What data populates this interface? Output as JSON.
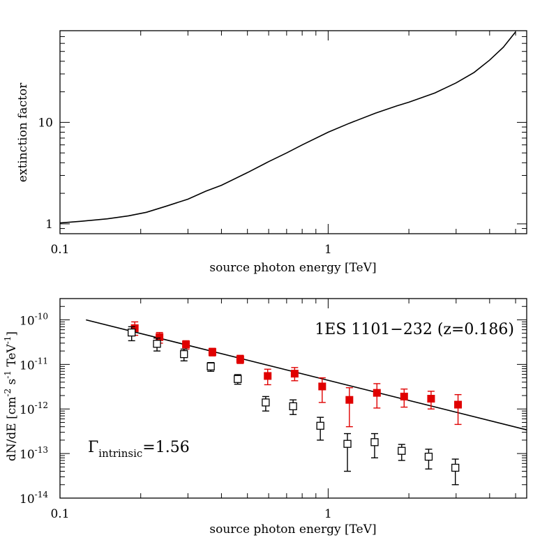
{
  "chart_data": [
    {
      "type": "line",
      "xlabel": "source photon energy [TeV]",
      "ylabel": "extinction factor",
      "xscale": "log",
      "yscale": "log",
      "xlim": [
        0.1,
        5.5
      ],
      "ylim": [
        0.8,
        80
      ],
      "x_tick_labels": [
        {
          "value": 0.1,
          "label": "0.1"
        },
        {
          "value": 1,
          "label": "1"
        }
      ],
      "y_tick_labels": [
        {
          "value": 1,
          "label": "1"
        },
        {
          "value": 10,
          "label": "10"
        }
      ],
      "series": [
        {
          "color": "#000000",
          "x": [
            0.1,
            0.12,
            0.15,
            0.18,
            0.21,
            0.25,
            0.3,
            0.35,
            0.4,
            0.5,
            0.6,
            0.7,
            0.8,
            1.0,
            1.2,
            1.5,
            1.8,
            2.0,
            2.5,
            3.0,
            3.5,
            4.0,
            4.5,
            5.0
          ],
          "y": [
            1.02,
            1.06,
            1.12,
            1.2,
            1.3,
            1.5,
            1.75,
            2.1,
            2.4,
            3.2,
            4.1,
            5.0,
            6.0,
            8.0,
            9.8,
            12.3,
            14.5,
            15.8,
            19.5,
            24.5,
            31,
            41,
            55,
            78
          ]
        }
      ]
    },
    {
      "type": "scatter",
      "xlabel": "source photon energy [TeV]",
      "ylabel_main": "dN/dE  [cm",
      "ylabel_sup1": "-2",
      "ylabel_mid": " s",
      "ylabel_sup2": "-1",
      "ylabel_mid2": " TeV",
      "ylabel_sup3": "-1",
      "ylabel_end": "]",
      "xscale": "log",
      "yscale": "log",
      "xlim": [
        0.1,
        5.5
      ],
      "ylim": [
        1e-14,
        3e-10
      ],
      "x_tick_labels": [
        {
          "value": 0.1,
          "label": "0.1"
        },
        {
          "value": 1,
          "label": "1"
        }
      ],
      "y_tick_labels": [
        {
          "value": 1e-10,
          "base": "10",
          "exp": "-10"
        },
        {
          "value": 1e-11,
          "base": "10",
          "exp": "-11"
        },
        {
          "value": 1e-12,
          "base": "10",
          "exp": "-12"
        },
        {
          "value": 1e-13,
          "base": "10",
          "exp": "-13"
        },
        {
          "value": 1e-14,
          "base": "10",
          "exp": "-14"
        }
      ],
      "annotation_source": "1ES 1101−232 (z=0.186)",
      "annotation_gamma_symbol": "Γ",
      "annotation_gamma_sub": "intrinsic",
      "annotation_gamma_value": "=1.56",
      "fit_line": {
        "color": "#000000",
        "x": [
          0.125,
          5.5
        ],
        "y": [
          1e-10,
          3.4e-13
        ]
      },
      "series": [
        {
          "marker": "filled-square",
          "color": "#e00000",
          "x": [
            0.19,
            0.235,
            0.295,
            0.37,
            0.47,
            0.595,
            0.75,
            0.95,
            1.2,
            1.52,
            1.92,
            2.42,
            3.05
          ],
          "y": [
            6.5e-11,
            4.1e-11,
            2.8e-11,
            1.9e-11,
            1.3e-11,
            5.5e-12,
            6.2e-12,
            3.2e-12,
            1.6e-12,
            2.3e-12,
            1.9e-12,
            1.7e-12,
            1.25e-12
          ],
          "y_low": [
            4.5e-11,
            3e-11,
            2.2e-11,
            1.55e-11,
            1.05e-11,
            3.5e-12,
            4.3e-12,
            1.4e-12,
            4e-13,
            1.05e-12,
            1.1e-12,
            1e-12,
            4.5e-13
          ],
          "y_high": [
            9e-11,
            5.2e-11,
            3.4e-11,
            2.3e-11,
            1.6e-11,
            7.8e-12,
            8.5e-12,
            5e-12,
            3e-12,
            3.7e-12,
            2.8e-12,
            2.5e-12,
            2.1e-12
          ]
        },
        {
          "marker": "open-square",
          "color": "#000000",
          "x": [
            0.185,
            0.23,
            0.29,
            0.365,
            0.46,
            0.585,
            0.74,
            0.935,
            1.18,
            1.49,
            1.88,
            2.37,
            2.98
          ],
          "y": [
            5.2e-11,
            2.9e-11,
            1.7e-11,
            9e-12,
            4.7e-12,
            1.4e-12,
            1.15e-12,
            4.2e-13,
            1.65e-13,
            1.8e-13,
            1.15e-13,
            8.5e-14,
            4.8e-14
          ],
          "y_low": [
            3.4e-11,
            2e-11,
            1.2e-11,
            7e-12,
            3.6e-12,
            9e-13,
            7.5e-13,
            2e-13,
            4e-14,
            8e-14,
            7e-14,
            4.5e-14,
            2e-14
          ],
          "y_high": [
            7e-11,
            3.9e-11,
            2.2e-11,
            1.1e-11,
            5.9e-12,
            1.9e-12,
            1.6e-12,
            6.5e-13,
            2.8e-13,
            2.8e-13,
            1.6e-13,
            1.25e-13,
            7.5e-14
          ]
        }
      ]
    }
  ]
}
